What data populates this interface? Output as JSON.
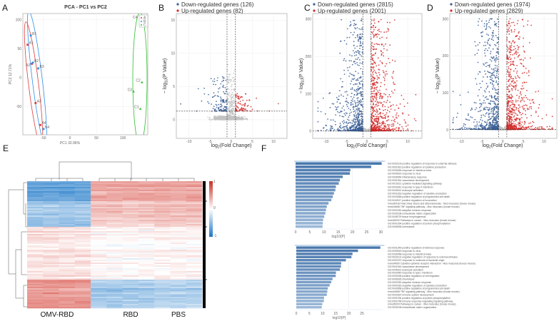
{
  "panel_letters": {
    "a": "A",
    "b": "B",
    "c": "C",
    "d": "D",
    "e": "E",
    "f": "F"
  },
  "colors": {
    "down": "#3a5e95",
    "up": "#d42a2a",
    "ns": "#c2c2c2",
    "pca_a": "#e03a3a",
    "pca_b": "#2f8fe8",
    "pca_c": "#2fbf2f",
    "heat_high": "#d9534a",
    "heat_low": "#3d8bd0",
    "go_bar_dark": "#4a78ad",
    "go_bar_light": "#9bb8d8"
  },
  "axis_text": {
    "volcano_y": {
      "pre": "− log",
      "sub": "10",
      "post": "(P Value)"
    },
    "volcano_x": {
      "pre": "log",
      "sub": "2",
      "post": "(Fold Change)"
    }
  },
  "chart_data": [
    {
      "id": "A",
      "type": "scatter",
      "title": "PCA - PC1 vs PC2",
      "xlabel": "PC1 32.96%",
      "ylabel": "PC2 12.71%",
      "xlim": [
        -89,
        147
      ],
      "ylim": [
        -99,
        111
      ],
      "xticks": [
        -50,
        0,
        50,
        100
      ],
      "yticks": [
        -50,
        0,
        50,
        100
      ],
      "grid": true,
      "legend_position": "top-right",
      "series": [
        {
          "name": "A",
          "color": "#e03a3a",
          "points": [
            {
              "label": "A1",
              "x": -80,
              "y": 57
            },
            {
              "label": "A2",
              "x": -72,
              "y": 24
            },
            {
              "label": "A3",
              "x": -65,
              "y": -44
            },
            {
              "label": "A4",
              "x": -56,
              "y": -82
            }
          ]
        },
        {
          "name": "B",
          "color": "#2f8fe8",
          "points": [
            {
              "label": "B1",
              "x": -74,
              "y": 73
            },
            {
              "label": "B2",
              "x": -70,
              "y": 26
            },
            {
              "label": "B3",
              "x": -60,
              "y": 16
            },
            {
              "label": "B4",
              "x": -50,
              "y": -89
            }
          ]
        },
        {
          "name": "C",
          "color": "#2fbf2f",
          "points": [
            {
              "label": "C1",
              "x": 133,
              "y": -54
            },
            {
              "label": "C2",
              "x": 136,
              "y": -8
            },
            {
              "label": "C3",
              "x": 120,
              "y": -24
            },
            {
              "label": "C4",
              "x": 138,
              "y": 104
            }
          ]
        }
      ]
    },
    {
      "id": "B",
      "type": "scatter",
      "legend": [
        "Down-regulated genes (126)",
        "Up-regulated genes (82)"
      ],
      "down_count": 126,
      "up_count": 82,
      "fc_threshold": 1,
      "neglog10p_threshold": 1.3,
      "xlim": [
        -13,
        13.2
      ],
      "ylim": [
        -2.8,
        16
      ],
      "xticks": [
        -10,
        -5,
        0,
        5,
        10
      ],
      "yticks": [
        0,
        5,
        10,
        15
      ],
      "ymax_sig": 6.5,
      "grid": true,
      "legend_position": "top-left"
    },
    {
      "id": "C",
      "type": "scatter",
      "legend": [
        "Down-regulated genes (2815)",
        "Up-regulated genes (2001)"
      ],
      "down_count": 2815,
      "up_count": 2001,
      "fc_threshold": 1,
      "neglog10p_threshold": 1.3,
      "xlim": [
        -13.3,
        13.5
      ],
      "ylim": [
        -19,
        315
      ],
      "xticks": [
        -10,
        -5,
        0,
        5,
        10
      ],
      "yticks": [
        0,
        100,
        200,
        300
      ],
      "ymax_sig": 300,
      "grid": true,
      "legend_position": "top-left"
    },
    {
      "id": "D",
      "type": "scatter",
      "legend": [
        "Down-regulated genes (1974)",
        "Up-regulated genes (2829)"
      ],
      "down_count": 1974,
      "up_count": 2829,
      "fc_threshold": 1,
      "neglog10p_threshold": 1.3,
      "xlim": [
        -12.8,
        13.1
      ],
      "ylim": [
        -23,
        315
      ],
      "xticks": [
        -10,
        -5,
        0,
        5,
        10
      ],
      "yticks": [
        0,
        100,
        200,
        300
      ],
      "ymax_sig": 300,
      "grid": true,
      "legend_position": "top-left"
    },
    {
      "id": "E",
      "type": "heatmap",
      "groups": [
        {
          "name": "OMV-RBD",
          "columns": 4
        },
        {
          "name": "RBD",
          "columns": 4
        },
        {
          "name": "PBS",
          "columns": 3
        }
      ],
      "row_clusters": [
        {
          "fraction": 0.155,
          "means": {
            "OMV-RBD": -0.8,
            "RBD": 0.5,
            "PBS": 0.5
          }
        },
        {
          "fraction": 0.205,
          "means": {
            "OMV-RBD": -0.5,
            "RBD": 0.3,
            "PBS": 0.35
          }
        },
        {
          "fraction": 0.415,
          "means": {
            "OMV-RBD": 0.15,
            "RBD": 0.02,
            "PBS": 0.05
          }
        },
        {
          "fraction": 0.225,
          "means": {
            "OMV-RBD": 0.6,
            "RBD": -0.45,
            "PBS": -0.4
          }
        }
      ],
      "scale": {
        "min": -1,
        "max": 1,
        "ticks": [
          "1",
          "0",
          "-1"
        ]
      }
    },
    {
      "id": "F-top",
      "type": "bar",
      "orientation": "horizontal",
      "xlabel": "log10(P)",
      "xlim": [
        0,
        31
      ],
      "xticks": [
        0,
        5,
        10,
        15,
        20,
        25,
        30
      ],
      "categories": [
        "GO:0032103 positive regulation of response to external stimulus",
        "GO:0001819 positive regulation of cytokine production",
        "GO:0035456 response to interferon-beta",
        "GO:0009615 response to virus",
        "GO:0006954 inflammatory response",
        "GO:0001944 vasculature development",
        "GO:0019221 cytokine-mediated signaling pathway",
        "GO:0034341 response to type II interferon",
        "GO:0045321 leukocyte activation",
        "GO:0001818 negative regulation of cytokine production",
        "GO:0043068 positive regulation of programmed cell death",
        "GO:0040017 positive regulation of locomotion",
        "mmu05418 Fluid shear stress and atherosclerosis - Mus musculus (house mouse)",
        "mmu04668 TNF signaling pathway - Mus musculus (house mouse)",
        "GO:0002250 adaptive immune response",
        "GO:0030198 extracellular matrix organization",
        "GO:0048729 tissue morphogenesis",
        "mmu05200 Pathways in cancer - Mus musculus (house mouse)",
        "GO:0001934 positive regulation of protein phosphorylation",
        "GO:0006935 chemotaxis"
      ],
      "values": [
        30.3,
        26.6,
        19.3,
        19.1,
        16.6,
        15.6,
        15.2,
        14.2,
        14.0,
        13.5,
        13.1,
        12.6,
        11.6,
        11.0,
        10.7,
        10.5,
        10.1,
        9.7,
        9.6,
        9.5
      ]
    },
    {
      "id": "F-bottom",
      "type": "bar",
      "orientation": "horizontal",
      "xlabel": "log10(P)",
      "xlim": [
        0,
        33
      ],
      "xticks": [
        0,
        5,
        10,
        15,
        20,
        25
      ],
      "categories": [
        "GO:0031349 positive regulation of defense response",
        "GO:0009615 response to virus",
        "GO:0035458 response to interferon-beta",
        "GO:0032101 negative regulation of response to external stimulus",
        "GO:0002237 response to molecule of bacterial origin",
        "mmu04060 Cytokine-cytokine receptor interaction - Mus musculus (house mouse)",
        "GO:0001944 vasculature development",
        "GO:0045321 leukocyte activation",
        "GO:0034340 response to type I interferon",
        "GO:0030335 positive regulation of cell migration",
        "GO:0006935 chemotaxis",
        "GO:0002250 adaptive immune response",
        "GO:0001818 negative regulation of cytokine production",
        "GO:0043068 positive regulation of programmed cell death",
        "mmu04668 TNF signaling pathway - Mus musculus (house mouse)",
        "GO:0002520 immune system development",
        "GO:0001934 positive regulation of protein phosphorylation",
        "GO:0002768 immune response-regulating signaling pathway",
        "mmu05200 Pathways in cancer - Mus musculus (house mouse)",
        "GO:0030198 extracellular matrix organization"
      ],
      "values": [
        32.0,
        23.5,
        21.4,
        21.0,
        18.9,
        17.1,
        17.0,
        16.6,
        15.1,
        15.0,
        13.8,
        13.3,
        12.7,
        12.0,
        11.8,
        11.6,
        10.6,
        10.5,
        9.9,
        9.7
      ]
    }
  ]
}
